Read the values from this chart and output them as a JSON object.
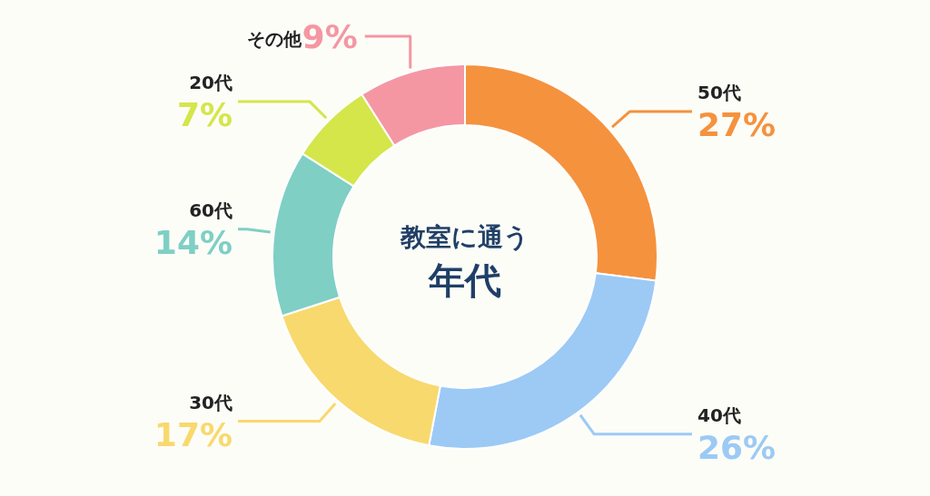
{
  "chart_data": {
    "type": "donut",
    "title": "教室に通う",
    "subtitle": "年代",
    "categories": [
      "50代",
      "40代",
      "30代",
      "60代",
      "20代",
      "その他"
    ],
    "values": [
      27,
      26,
      17,
      14,
      7,
      9
    ],
    "value_labels": [
      "27%",
      "26%",
      "17%",
      "14%",
      "7%",
      "9%"
    ],
    "colors": [
      "#f5923e",
      "#9ccaf5",
      "#f8d96e",
      "#7fcfc4",
      "#d4e64a",
      "#f497a3"
    ]
  }
}
